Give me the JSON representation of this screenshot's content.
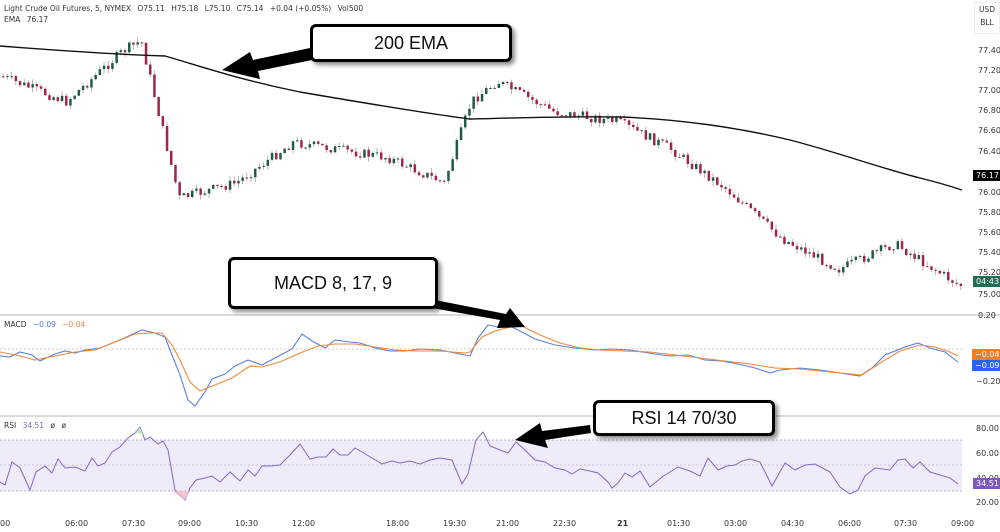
{
  "header": {
    "symbol_line": "Light Crude Oil Futures, 5, NYMEX",
    "open": "O75.11",
    "high": "H75.18",
    "low": "L75.10",
    "close": "C75.14",
    "change": "+0.04 (+0.05%)",
    "volume": "Vol500",
    "ema_label": "EMA",
    "ema_value": "76.17"
  },
  "currency": {
    "line1": "USD",
    "line2": "BLL"
  },
  "price_axis": [
    "77.40",
    "77.20",
    "77.00",
    "76.80",
    "76.60",
    "76.40",
    "76.00",
    "75.80",
    "75.60",
    "75.40",
    "75.20",
    "75.00"
  ],
  "price_tags": {
    "ema": "76.17",
    "countdown": "04:43"
  },
  "macd_pane": {
    "label": "MACD",
    "macd_value": "−0.09",
    "signal_value": "−0.04",
    "axis": [
      "0.20",
      "−0.20"
    ],
    "tag_signal": "−0.04",
    "tag_macd": "−0.09"
  },
  "rsi_pane": {
    "label": "RSI",
    "value": "34.51",
    "extra1": "ø",
    "extra2": "ø",
    "axis": [
      "80.00",
      "60.00",
      "40.00",
      "20.00"
    ],
    "tag": "34.51"
  },
  "time_axis": [
    "00",
    "06:00",
    "07:30",
    "09:00",
    "10:30",
    "12:00",
    "18:00",
    "19:30",
    "21:00",
    "22:30",
    "21",
    "01:30",
    "03:00",
    "04:30",
    "06:00",
    "07:30",
    "09:00"
  ],
  "callouts": {
    "ema": "200 EMA",
    "macd": "MACD 8, 17, 9",
    "rsi": "RSI 14 70/30"
  },
  "colors": {
    "bull": "#1e5c45",
    "bear": "#a3224f",
    "ema": "#111111",
    "macd": "#5b7fe0",
    "signal": "#f0893a",
    "rsi": "#7e6cc4",
    "rsi_band": "#ede9f7",
    "tag_ema": "#000000",
    "tag_countdown": "#1f6e55",
    "tag_signal": "#f57c1f",
    "tag_macd": "#2962ff",
    "tag_rsi": "#7e57c2"
  },
  "chart_data": [
    {
      "type": "candlestick",
      "title": "Light Crude Oil Futures, 5, NYMEX",
      "ylabel": "USD/BLL",
      "ylim": [
        75.0,
        77.5
      ],
      "x_ticks": [
        "00",
        "06:00",
        "07:30",
        "09:00",
        "10:30",
        "12:00",
        "18:00",
        "19:30",
        "21:00",
        "22:30",
        "21",
        "01:30",
        "03:00",
        "04:30",
        "06:00",
        "07:30",
        "09:00"
      ],
      "close_path_approx": [
        {
          "t": "00",
          "v": 77.2
        },
        {
          "t": "06:00",
          "v": 76.95
        },
        {
          "t": "07:30",
          "v": 77.45
        },
        {
          "t": "08:15",
          "v": 77.55
        },
        {
          "t": "09:00",
          "v": 76.0
        },
        {
          "t": "10:30",
          "v": 76.15
        },
        {
          "t": "12:00",
          "v": 76.55
        },
        {
          "t": "18:00",
          "v": 76.4
        },
        {
          "t": "19:30",
          "v": 76.15
        },
        {
          "t": "20:00",
          "v": 76.95
        },
        {
          "t": "21:00",
          "v": 77.15
        },
        {
          "t": "22:30",
          "v": 76.85
        },
        {
          "t": "21",
          "v": 76.75
        },
        {
          "t": "01:30",
          "v": 76.5
        },
        {
          "t": "03:00",
          "v": 76.1
        },
        {
          "t": "04:30",
          "v": 75.6
        },
        {
          "t": "06:00",
          "v": 75.3
        },
        {
          "t": "07:30",
          "v": 75.55
        },
        {
          "t": "09:00",
          "v": 75.14
        }
      ],
      "series": [
        {
          "name": "EMA 200",
          "last": 76.17
        }
      ],
      "last_close": 75.14
    },
    {
      "type": "line",
      "title": "MACD 8, 17, 9",
      "ylim": [
        -0.3,
        0.25
      ],
      "series": [
        {
          "name": "MACD",
          "last": -0.09
        },
        {
          "name": "Signal",
          "last": -0.04
        }
      ]
    },
    {
      "type": "line",
      "title": "RSI 14 70/30",
      "ylim": [
        15,
        85
      ],
      "bands": [
        30,
        50,
        70
      ],
      "series": [
        {
          "name": "RSI",
          "last": 34.51
        }
      ]
    }
  ]
}
